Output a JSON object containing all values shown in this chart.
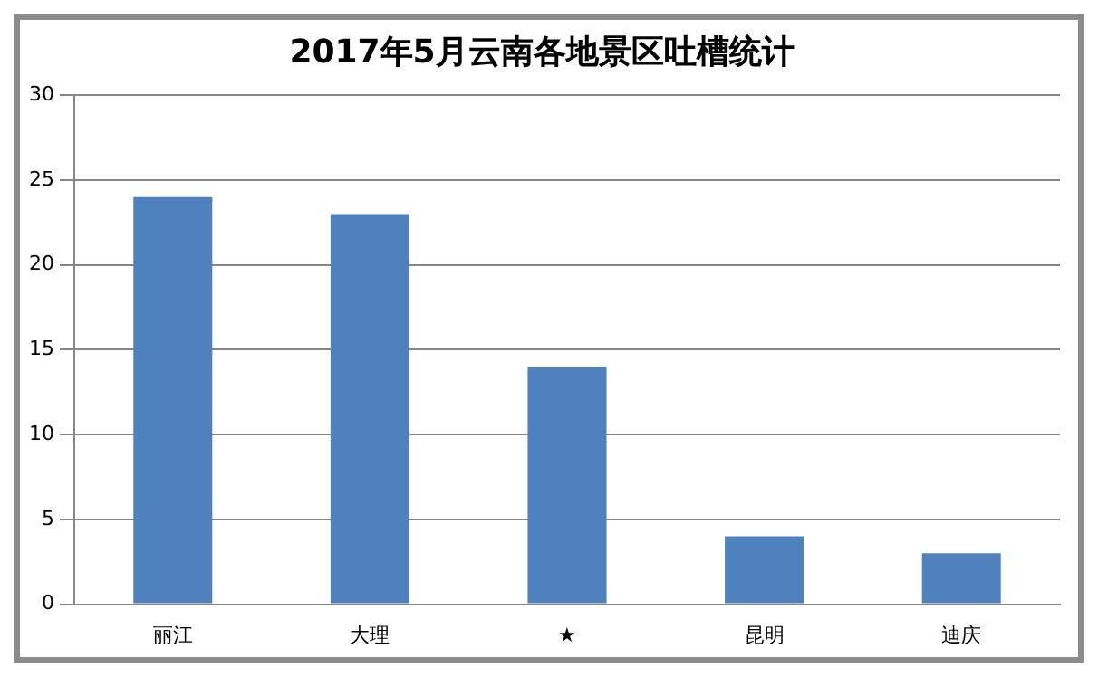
{
  "chart_data": {
    "type": "bar",
    "title": "2017年5月云南各地景区吐槽统计",
    "categories": [
      "丽江",
      "大理",
      "★",
      "昆明",
      "迪庆"
    ],
    "values": [
      24,
      23,
      14,
      4,
      3
    ],
    "color": "#4f81bd",
    "ylim": [
      0,
      30
    ],
    "yticks": [
      0,
      5,
      10,
      15,
      20,
      25,
      30
    ],
    "grid": "y"
  }
}
